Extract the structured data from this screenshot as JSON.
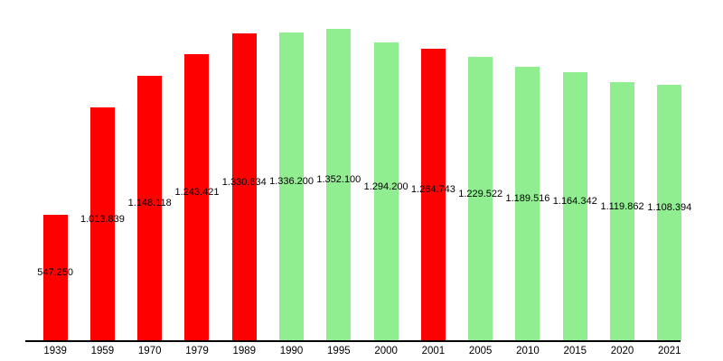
{
  "chart_data": {
    "type": "bar",
    "title": "",
    "xlabel": "",
    "ylabel": "",
    "grid": false,
    "legend": "none",
    "ylim": [
      0,
      1352100
    ],
    "categories": [
      "1939",
      "1959",
      "1970",
      "1979",
      "1989",
      "1990",
      "1995",
      "2000",
      "2001",
      "2005",
      "2010",
      "2015",
      "2020",
      "2021"
    ],
    "values": [
      547250,
      1013839,
      1148118,
      1243421,
      1330634,
      1336200,
      1352100,
      1294200,
      1264743,
      1229522,
      1189516,
      1164342,
      1119862,
      1108394
    ],
    "value_labels": [
      "547.250",
      "1.013.839",
      "1.148.118",
      "1.243.421",
      "1.330.634",
      "1.336.200",
      "1.352.100",
      "1.294.200",
      "1.264.743",
      "1.229.522",
      "1.189.516",
      "1.164.342",
      "1.119.862",
      "1.108.394"
    ],
    "bar_kinds": [
      "census",
      "census",
      "census",
      "census",
      "census",
      "estimate",
      "estimate",
      "estimate",
      "census",
      "estimate",
      "estimate",
      "estimate",
      "estimate",
      "estimate"
    ],
    "colors": {
      "census": "#ff0000",
      "estimate": "#90ee90",
      "axis": "#000000",
      "label_text": "#000000",
      "background": "#ffffff"
    }
  }
}
